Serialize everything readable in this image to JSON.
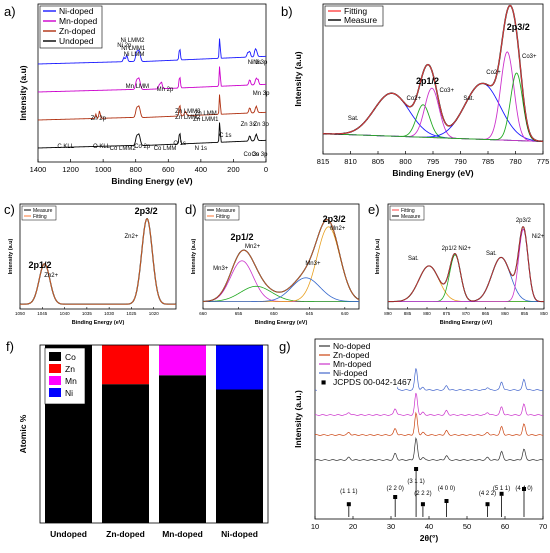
{
  "panels": {
    "a": "a)",
    "b": "b)",
    "c": "c)",
    "d": "d)",
    "e": "e)",
    "f": "f)",
    "g": "g)"
  },
  "chart_data": [
    {
      "id": "a",
      "type": "line",
      "xlabel": "Binding Energy (eV)",
      "ylabel": "Intensity (a.u)",
      "xlim": [
        1400,
        0
      ],
      "xticks": [
        "1400",
        "1200",
        "1000",
        "800",
        "600",
        "400",
        "200",
        "0"
      ],
      "legend_position": "top-left",
      "series": [
        {
          "name": "Ni-doped",
          "color": "#1a1aff",
          "offset": 3
        },
        {
          "name": "Mn-doped",
          "color": "#cc00cc",
          "offset": 2
        },
        {
          "name": "Zn-doped",
          "color": "#b03010",
          "offset": 1
        },
        {
          "name": "Undoped",
          "color": "#000000",
          "offset": 0
        }
      ],
      "annotations": {
        "ni": [
          "Ni 2p",
          "Ni LMM2",
          "Ni LMM1",
          "Ni LMM",
          "Ni 3s",
          "Ni 3p"
        ],
        "mn": [
          "Mn LMM",
          "Mn 2p",
          "Mn 3p"
        ],
        "zn": [
          "Zn 2p",
          "Zn LMM3",
          "Zn LMM2",
          "Zn LMM",
          "Zn LMM1",
          "C 1s",
          "Zn 3s",
          "Zn 3p"
        ],
        "co": [
          "C KLL",
          "O KLL",
          "Co LMM2",
          "Co 2p",
          "Co LMM",
          "O 1s",
          "N 1s",
          "Co 3s",
          "Co 3p"
        ]
      }
    },
    {
      "id": "b",
      "type": "line",
      "xlabel": "Binding Energy (eV)",
      "ylabel": "Intensity (a.u)",
      "xlim": [
        815,
        775
      ],
      "xticks": [
        "815",
        "810",
        "805",
        "800",
        "795",
        "790",
        "785",
        "780",
        "775"
      ],
      "legend": [
        "Fitting",
        "Measure"
      ],
      "legend_position": "top-left",
      "annotations": [
        "Sat.",
        "Co2+",
        "2p1/2",
        "Co3+",
        "Sat.",
        "Co2+",
        "2p3/2",
        "Co3+"
      ]
    },
    {
      "id": "c",
      "type": "line",
      "xlabel": "Binding Energy (eV)",
      "ylabel": "Intensity (a.u)",
      "xlim": [
        1050,
        1015
      ],
      "xticks": [
        "1050",
        "1045",
        "1040",
        "1035",
        "1030",
        "1025",
        "1020"
      ],
      "legend": [
        "Measure",
        "Fitting"
      ],
      "annotations": [
        "2p1/2",
        "Zn2+",
        "2p3/2",
        "Zn2+"
      ],
      "peaks": [
        {
          "x": 1044.5,
          "y": 0.45
        },
        {
          "x": 1021.5,
          "y": 0.95
        }
      ]
    },
    {
      "id": "d",
      "type": "line",
      "xlabel": "Binding Energy (eV)",
      "ylabel": "Intensity (a.u)",
      "xlim": [
        660,
        638
      ],
      "xticks": [
        "660",
        "655",
        "650",
        "645",
        "640"
      ],
      "legend": [
        "Measure",
        "Fitting"
      ],
      "annotations": [
        "2p1/2",
        "Mn2+",
        "Mn3+",
        "2p3/2",
        "Mn2+",
        "Mn3+"
      ]
    },
    {
      "id": "e",
      "type": "line",
      "xlabel": "Binding Energy (eV)",
      "ylabel": "Intensity (a.u)",
      "xlim": [
        890,
        850
      ],
      "xticks": [
        "890",
        "885",
        "880",
        "875",
        "870",
        "865",
        "860",
        "855",
        "850"
      ],
      "legend": [
        "Fitting",
        "Measure"
      ],
      "annotations": [
        "Sat.",
        "2p1/2 Ni2+",
        "Sat.",
        "2p3/2",
        "Ni2+"
      ]
    },
    {
      "id": "f",
      "type": "bar",
      "stacked": true,
      "ylabel": "Atomic %",
      "ylim": [
        0,
        100
      ],
      "categories": [
        "Undoped",
        "Zn-doped",
        "Mn-doped",
        "Ni-doped"
      ],
      "legend": [
        {
          "name": "Co",
          "color": "#000000"
        },
        {
          "name": "Zn",
          "color": "#ff0000"
        },
        {
          "name": "Mn",
          "color": "#ff00ff"
        },
        {
          "name": "Ni",
          "color": "#0000ff"
        }
      ],
      "series": [
        {
          "name": "Co",
          "color": "#000000",
          "values": [
            100,
            78,
            83,
            75
          ]
        },
        {
          "name": "Zn",
          "color": "#ff0000",
          "values": [
            0,
            22,
            0,
            0
          ]
        },
        {
          "name": "Mn",
          "color": "#ff00ff",
          "values": [
            0,
            0,
            17,
            0
          ]
        },
        {
          "name": "Ni",
          "color": "#0000ff",
          "values": [
            0,
            0,
            0,
            25
          ]
        }
      ]
    },
    {
      "id": "g",
      "type": "line",
      "xlabel": "2θ(°)",
      "ylabel": "Intensity (a.u.)",
      "xlim": [
        10,
        70
      ],
      "xticks": [
        "10",
        "20",
        "30",
        "40",
        "50",
        "60",
        "70"
      ],
      "legend_position": "top-left",
      "series": [
        {
          "name": "No-doped",
          "color": "#333333"
        },
        {
          "name": "Zn-doped",
          "color": "#cc4411"
        },
        {
          "name": "Mn-doped",
          "color": "#cc33cc"
        },
        {
          "name": "Ni-doped",
          "color": "#4466cc"
        }
      ],
      "reference": {
        "name": "JCPDS 00-042-1467",
        "marker": "■",
        "peaks": [
          {
            "x": 18.9,
            "label": "(1 1 1)"
          },
          {
            "x": 31.1,
            "label": "(2 2 0)"
          },
          {
            "x": 36.6,
            "label": "(3 1 1)"
          },
          {
            "x": 38.4,
            "label": "(2 2 2)"
          },
          {
            "x": 44.6,
            "label": "(4 0 0)"
          },
          {
            "x": 55.4,
            "label": "(4 2 2)"
          },
          {
            "x": 59.1,
            "label": "(5 1 1)"
          },
          {
            "x": 65.0,
            "label": "(4 4 0)"
          }
        ]
      }
    }
  ]
}
